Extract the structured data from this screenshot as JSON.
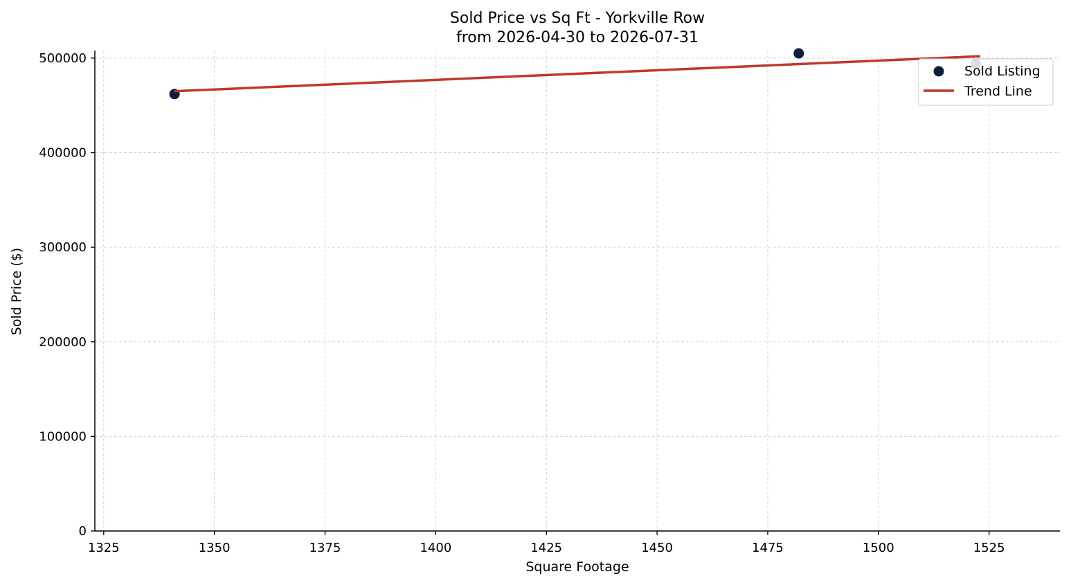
{
  "chart_data": {
    "type": "scatter",
    "title_line1": "Sold Price vs Sq Ft - Yorkville Row",
    "title_line2": "from 2026-04-30 to 2026-07-31",
    "xlabel": "Square Footage",
    "ylabel": "Sold Price ($)",
    "xlim": [
      1323,
      1541
    ],
    "ylim": [
      0,
      508000
    ],
    "x_ticks": [
      1325,
      1350,
      1375,
      1400,
      1425,
      1450,
      1475,
      1500,
      1525
    ],
    "y_ticks": [
      0,
      100000,
      200000,
      300000,
      400000,
      500000
    ],
    "x_tick_labels": [
      "1325",
      "1350",
      "1375",
      "1400",
      "1425",
      "1450",
      "1475",
      "1500",
      "1525"
    ],
    "y_tick_labels": [
      "0",
      "100000",
      "200000",
      "300000",
      "400000",
      "500000"
    ],
    "grid": true,
    "legend_position": "top-right",
    "series": [
      {
        "name": "Sold Listing",
        "kind": "scatter",
        "color": "#0d1f3c",
        "points": [
          {
            "x": 1341,
            "y": 462000
          },
          {
            "x": 1482,
            "y": 505000
          },
          {
            "x": 1522,
            "y": 494000
          }
        ]
      },
      {
        "name": "Trend Line",
        "kind": "line",
        "color": "#c0392b",
        "points": [
          {
            "x": 1341,
            "y": 465000
          },
          {
            "x": 1523,
            "y": 502000
          }
        ]
      }
    ]
  }
}
